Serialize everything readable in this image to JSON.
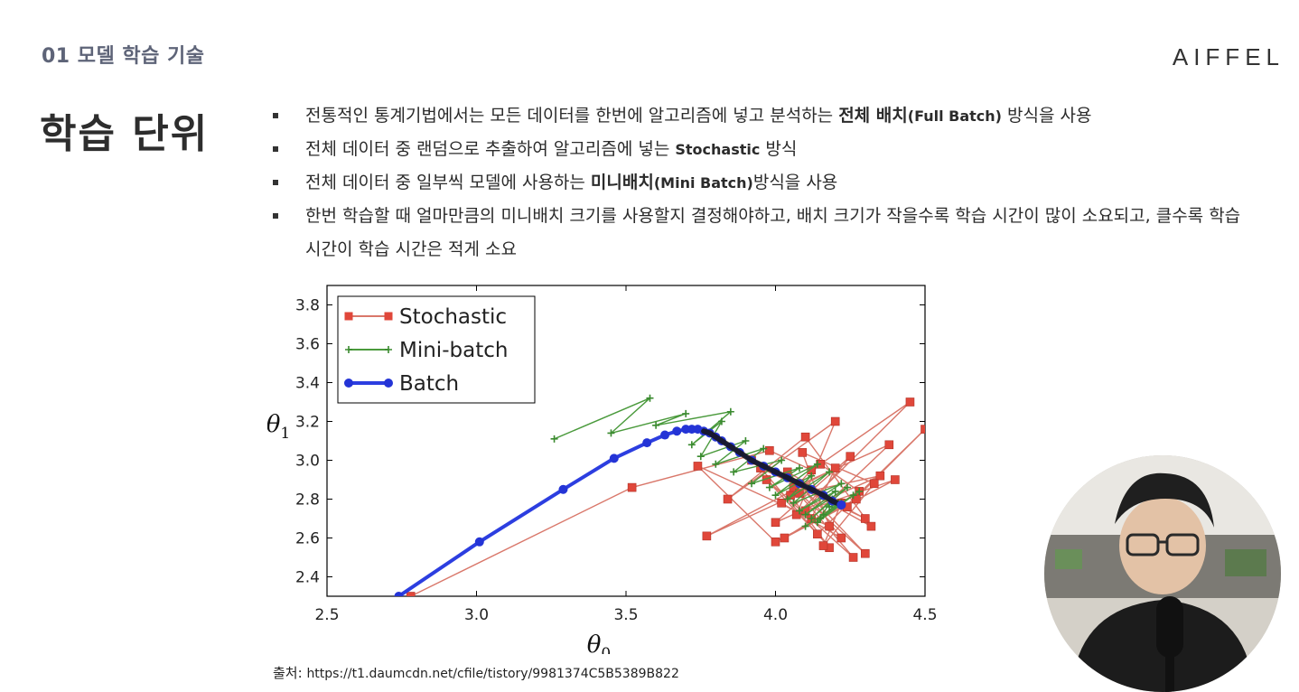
{
  "header": {
    "section_label": "01 모델 학습 기술",
    "logo": "AIFFEL"
  },
  "page_title": "학습 단위",
  "bullets": [
    {
      "pre": "전통적인 통계기법에서는 모든 데이터를 한번에 알고리즘에 넣고 분석하는 ",
      "bold": "전체 배치",
      "bold_small": "(Full Batch)",
      "post": " 방식을 사용"
    },
    {
      "pre": "전체 데이터 중 랜덤으로 추출하여 알고리즘에 넣는 ",
      "bold": "",
      "bold_small": "Stochastic",
      "post": " 방식"
    },
    {
      "pre": "전체 데이터 중 일부씩 모델에 사용하는 ",
      "bold": "미니배치",
      "bold_small": "(Mini Batch)",
      "post": "방식을 사용"
    },
    {
      "pre": "한번 학습할 때 얼마만큼의 미니배치 크기를 사용할지 결정해야하고, 배치 크기가 작을수록 학습 시간이 많이 소요되고, 클수록 학습 시간이 학습 시간은 적게 소요",
      "bold": "",
      "bold_small": "",
      "post": ""
    }
  ],
  "source": {
    "label": "출처: ",
    "url": "https://t1.daumcdn.net/cfile/tistory/9981374C5B5389B822"
  },
  "webcam": {
    "icon": "presenter-webcam-icon"
  },
  "chart_data": {
    "type": "line",
    "xlabel": "θ0",
    "ylabel": "θ1",
    "xlim": [
      2.5,
      4.5
    ],
    "ylim": [
      2.3,
      3.9
    ],
    "xticks": [
      "2.5",
      "3.0",
      "3.5",
      "4.0",
      "4.5"
    ],
    "yticks": [
      "2.4",
      "2.6",
      "2.8",
      "3.0",
      "3.2",
      "3.4",
      "3.6",
      "3.8"
    ],
    "grid": false,
    "legend_position": "top-left",
    "series": [
      {
        "name": "Stochastic",
        "color": "#e0473a",
        "line_color": "#d9776a",
        "marker": "square",
        "x": [
          2.78,
          3.52,
          3.98,
          4.12,
          4.02,
          4.22,
          4.08,
          4.3,
          3.95,
          4.18,
          4.05,
          4.35,
          4.0,
          4.25,
          4.1,
          4.4,
          4.03,
          4.28,
          4.15,
          4.45,
          4.07,
          4.2,
          3.84,
          4.1,
          4.32,
          3.92,
          4.24,
          4.5,
          4.14,
          3.97,
          4.26,
          4.06,
          4.38,
          4.12,
          4.2,
          3.77,
          4.08,
          4.3,
          4.04,
          4.22,
          4.16,
          4.33,
          4.09,
          4.18,
          3.74,
          4.0,
          4.27
        ],
        "y": [
          2.3,
          2.86,
          3.05,
          2.95,
          2.78,
          2.6,
          2.88,
          2.7,
          2.96,
          2.55,
          2.82,
          2.92,
          2.68,
          3.02,
          2.74,
          2.9,
          2.6,
          2.84,
          2.98,
          3.3,
          2.72,
          3.2,
          2.8,
          3.12,
          2.66,
          3.0,
          2.76,
          3.16,
          2.62,
          2.9,
          2.5,
          2.86,
          3.08,
          2.7,
          2.96,
          2.61,
          2.83,
          2.52,
          2.94,
          2.78,
          2.56,
          2.88,
          3.04,
          2.66,
          2.97,
          2.58,
          2.8
        ]
      },
      {
        "name": "Mini-batch",
        "color": "#3a8a2f",
        "line_color": "#4a9a3c",
        "marker": "plus",
        "x": [
          3.26,
          3.58,
          3.45,
          3.7,
          3.6,
          3.85,
          3.72,
          3.82,
          3.75,
          3.9,
          3.8,
          3.96,
          3.86,
          4.02,
          3.92,
          4.08,
          3.98,
          4.14,
          4.0,
          4.12,
          4.04,
          4.18,
          4.06,
          4.22,
          4.08,
          4.2,
          4.1,
          4.24,
          4.12,
          4.19,
          4.14,
          4.26,
          4.1,
          4.22,
          4.15,
          4.28,
          4.16,
          4.21,
          4.18
        ],
        "y": [
          3.11,
          3.32,
          3.14,
          3.24,
          3.18,
          3.25,
          3.08,
          3.2,
          3.02,
          3.1,
          2.98,
          3.06,
          2.94,
          3.0,
          2.88,
          2.96,
          2.86,
          2.98,
          2.82,
          2.92,
          2.8,
          2.94,
          2.78,
          2.88,
          2.74,
          2.84,
          2.72,
          2.86,
          2.7,
          2.8,
          2.68,
          2.82,
          2.66,
          2.78,
          2.7,
          2.84,
          2.72,
          2.78,
          2.76
        ]
      },
      {
        "name": "Batch",
        "color": "#2434d6",
        "line_color": "#2c3ee0",
        "marker": "circle",
        "x": [
          2.74,
          3.01,
          3.29,
          3.46,
          3.57,
          3.63,
          3.67,
          3.7,
          3.72,
          3.74,
          3.76,
          3.78,
          3.8,
          3.82,
          3.85,
          3.88,
          3.92,
          3.96,
          4.0,
          4.04,
          4.08,
          4.12,
          4.16,
          4.19,
          4.22
        ],
        "y": [
          2.3,
          2.58,
          2.85,
          3.01,
          3.09,
          3.13,
          3.15,
          3.16,
          3.16,
          3.16,
          3.15,
          3.14,
          3.12,
          3.1,
          3.07,
          3.04,
          3.0,
          2.97,
          2.94,
          2.91,
          2.88,
          2.85,
          2.82,
          2.79,
          2.77
        ]
      }
    ]
  }
}
